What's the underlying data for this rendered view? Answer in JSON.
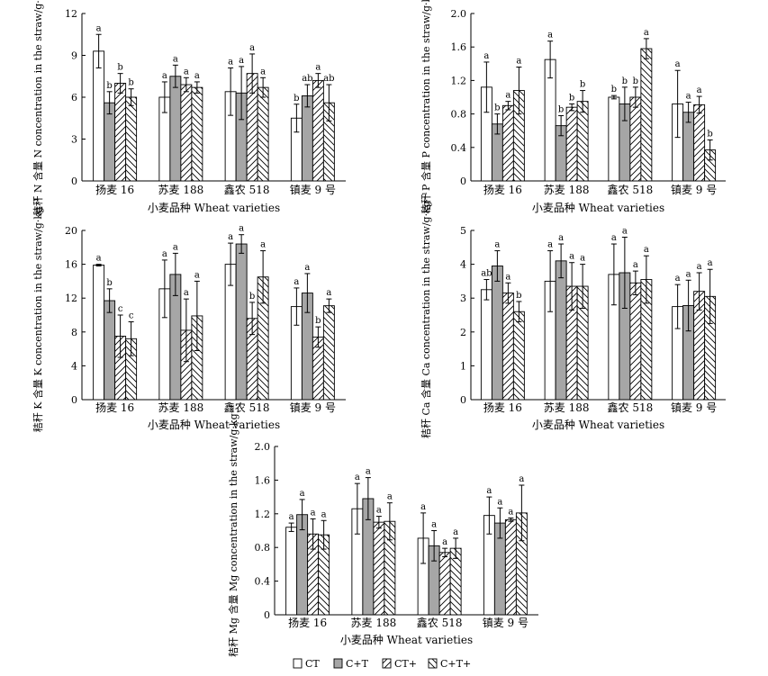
{
  "legend": [
    "CT",
    "C+T",
    "CT+",
    "C+T+"
  ],
  "chart_data": [
    {
      "type": "bar",
      "ylabel": "秸秆 N 含量 N concentration in the straw/g·kg⁻¹",
      "xlabel": "小麦品种 Wheat varieties",
      "categories": [
        "扬麦 16",
        "苏麦 188",
        "鑫农 518",
        "镇麦 9 号"
      ],
      "ylim": [
        0,
        12
      ],
      "yticks": [
        "0",
        "3",
        "6",
        "9",
        "12"
      ],
      "series": [
        {
          "name": "CT",
          "values": [
            9.3,
            6.0,
            6.4,
            4.5
          ],
          "errors": [
            1.2,
            1.1,
            1.7,
            1.0
          ],
          "letters": [
            "a",
            "a",
            "a",
            "b"
          ]
        },
        {
          "name": "C+T",
          "values": [
            5.6,
            7.5,
            6.3,
            6.1
          ],
          "errors": [
            0.8,
            0.8,
            1.9,
            0.8
          ],
          "letters": [
            "b",
            "a",
            "a",
            "ab"
          ]
        },
        {
          "name": "CT+",
          "values": [
            7.0,
            6.9,
            7.7,
            7.2
          ],
          "errors": [
            0.7,
            0.5,
            1.4,
            0.5
          ],
          "letters": [
            "b",
            "a",
            "a",
            "a"
          ]
        },
        {
          "name": "C+T+",
          "values": [
            6.0,
            6.7,
            6.7,
            5.6
          ],
          "errors": [
            0.6,
            0.4,
            0.7,
            1.3
          ],
          "letters": [
            "b",
            "a",
            "a",
            "ab"
          ]
        }
      ]
    },
    {
      "type": "bar",
      "ylabel": "秸秆 P 含量 P concentration in the straw/g·kg⁻¹",
      "xlabel": "小麦品种 Wheat varieties",
      "categories": [
        "扬麦 16",
        "苏麦 188",
        "鑫农 518",
        "镇麦 9 号"
      ],
      "ylim": [
        0,
        2.0
      ],
      "yticks": [
        "0",
        "0.4",
        "0.8",
        "1.2",
        "1.6",
        "2.0"
      ],
      "series": [
        {
          "name": "CT",
          "values": [
            1.12,
            1.45,
            1.0,
            0.92
          ],
          "errors": [
            0.3,
            0.22,
            0.02,
            0.4
          ],
          "letters": [
            "a",
            "a",
            "b",
            "a"
          ]
        },
        {
          "name": "C+T",
          "values": [
            0.68,
            0.66,
            0.92,
            0.82
          ],
          "errors": [
            0.12,
            0.12,
            0.2,
            0.12
          ],
          "letters": [
            "b",
            "b",
            "b",
            "a"
          ]
        },
        {
          "name": "CT+",
          "values": [
            0.9,
            0.88,
            1.0,
            0.91
          ],
          "errors": [
            0.05,
            0.04,
            0.12,
            0.1
          ],
          "letters": [
            "a",
            "b",
            "b",
            "a"
          ]
        },
        {
          "name": "C+T+",
          "values": [
            1.08,
            0.95,
            1.58,
            0.37
          ],
          "errors": [
            0.28,
            0.13,
            0.12,
            0.12
          ],
          "letters": [
            "a",
            "b",
            "a",
            "b"
          ]
        }
      ]
    },
    {
      "type": "bar",
      "ylabel": "秸秆 K 含量 K concentration in the straw/g·kg⁻¹",
      "xlabel": "小麦品种 Wheat varieties",
      "categories": [
        "扬麦 16",
        "苏麦 188",
        "鑫农 518",
        "镇麦 9 号"
      ],
      "ylim": [
        0,
        20
      ],
      "yticks": [
        "0",
        "4",
        "8",
        "12",
        "16",
        "20"
      ],
      "series": [
        {
          "name": "CT",
          "values": [
            15.9,
            13.1,
            16.0,
            11.0
          ],
          "errors": [
            0.1,
            3.4,
            2.5,
            2.2
          ],
          "letters": [
            "a",
            "a",
            "a",
            "a"
          ]
        },
        {
          "name": "C+T",
          "values": [
            11.7,
            14.8,
            18.4,
            12.6
          ],
          "errors": [
            1.4,
            2.5,
            1.1,
            2.3
          ],
          "letters": [
            "b",
            "a",
            "a",
            "a"
          ]
        },
        {
          "name": "CT+",
          "values": [
            7.5,
            8.2,
            9.6,
            7.4
          ],
          "errors": [
            2.5,
            3.7,
            1.9,
            1.2
          ],
          "letters": [
            "c",
            "a",
            "b",
            "b"
          ]
        },
        {
          "name": "C+T+",
          "values": [
            7.2,
            9.9,
            14.5,
            11.1
          ],
          "errors": [
            2.0,
            4.1,
            3.1,
            0.8
          ],
          "letters": [
            "c",
            "a",
            "a",
            "a"
          ]
        }
      ]
    },
    {
      "type": "bar",
      "ylabel": "秸秆 Ca 含量 Ca concentration in the straw/g·kg⁻¹",
      "xlabel": "小麦品种 Wheat varieties",
      "categories": [
        "扬麦 16",
        "苏麦 188",
        "鑫农 518",
        "镇麦 9 号"
      ],
      "ylim": [
        0,
        5
      ],
      "yticks": [
        "0",
        "1",
        "2",
        "3",
        "4",
        "5"
      ],
      "series": [
        {
          "name": "CT",
          "values": [
            3.25,
            3.5,
            3.7,
            2.75
          ],
          "errors": [
            0.3,
            0.9,
            0.9,
            0.65
          ],
          "letters": [
            "ab",
            "a",
            "a",
            "a"
          ]
        },
        {
          "name": "C+T",
          "values": [
            3.95,
            4.1,
            3.75,
            2.78
          ],
          "errors": [
            0.45,
            0.5,
            1.05,
            0.75
          ],
          "letters": [
            "a",
            "a",
            "a",
            "a"
          ]
        },
        {
          "name": "CT+",
          "values": [
            3.15,
            3.35,
            3.45,
            3.2
          ],
          "errors": [
            0.3,
            0.7,
            0.35,
            0.55
          ],
          "letters": [
            "a",
            "a",
            "a",
            "a"
          ]
        },
        {
          "name": "C+T+",
          "values": [
            2.6,
            3.35,
            3.55,
            3.05
          ],
          "errors": [
            0.3,
            0.65,
            0.7,
            0.8
          ],
          "letters": [
            "b",
            "a",
            "a",
            "a"
          ]
        }
      ]
    },
    {
      "type": "bar",
      "ylabel": "秸秆 Mg 含量 Mg concentration in the straw/g·kg⁻¹",
      "xlabel": "小麦品种 Wheat varieties",
      "categories": [
        "扬麦 16",
        "苏麦 188",
        "鑫农 518",
        "镇麦 9 号"
      ],
      "ylim": [
        0,
        2.0
      ],
      "yticks": [
        "0",
        "0.4",
        "0.8",
        "1.2",
        "1.6",
        "2.0"
      ],
      "series": [
        {
          "name": "CT",
          "values": [
            1.04,
            1.26,
            0.91,
            1.18
          ],
          "errors": [
            0.05,
            0.3,
            0.3,
            0.22
          ],
          "letters": [
            "a",
            "a",
            "a",
            "a"
          ]
        },
        {
          "name": "C+T",
          "values": [
            1.19,
            1.38,
            0.82,
            1.09
          ],
          "errors": [
            0.18,
            0.25,
            0.18,
            0.18
          ],
          "letters": [
            "a",
            "a",
            "a",
            "a"
          ]
        },
        {
          "name": "CT+",
          "values": [
            0.96,
            1.1,
            0.74,
            1.13
          ],
          "errors": [
            0.18,
            0.07,
            0.05,
            0.02
          ],
          "letters": [
            "a",
            "a",
            "a",
            "a"
          ]
        },
        {
          "name": "C+T+",
          "values": [
            0.95,
            1.11,
            0.79,
            1.21
          ],
          "errors": [
            0.17,
            0.22,
            0.12,
            0.33
          ],
          "letters": [
            "a",
            "a",
            "a",
            "a"
          ]
        }
      ]
    }
  ]
}
